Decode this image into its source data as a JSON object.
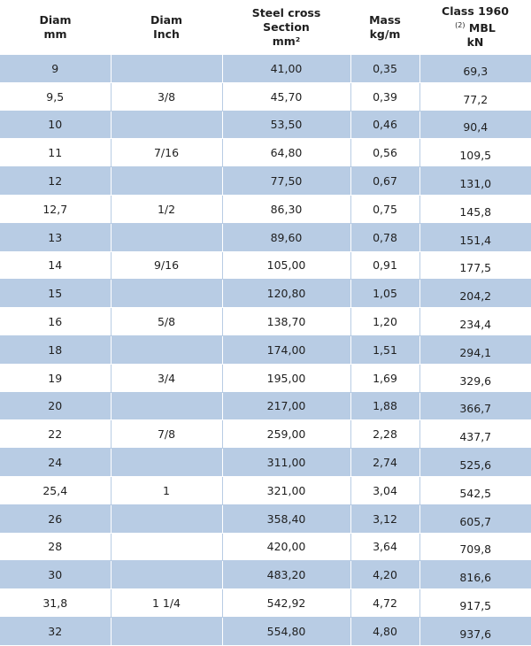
{
  "headers": {
    "diam_mm": [
      "Diam",
      "mm"
    ],
    "diam_inch": [
      "Diam",
      "Inch"
    ],
    "section": [
      "Steel cross",
      "Section",
      "mm²"
    ],
    "mass": [
      "Mass",
      "kg/m"
    ],
    "mbl": [
      "Class 1960",
      "(2)",
      "MBL",
      "kN"
    ]
  },
  "rows": [
    {
      "diam_mm": "9",
      "diam_inch": "",
      "section": "41,00",
      "mass": "0,35",
      "mbl": "69,3"
    },
    {
      "diam_mm": "9,5",
      "diam_inch": "3/8",
      "section": "45,70",
      "mass": "0,39",
      "mbl": "77,2"
    },
    {
      "diam_mm": "10",
      "diam_inch": "",
      "section": "53,50",
      "mass": "0,46",
      "mbl": "90,4"
    },
    {
      "diam_mm": "11",
      "diam_inch": "7/16",
      "section": "64,80",
      "mass": "0,56",
      "mbl": "109,5"
    },
    {
      "diam_mm": "12",
      "diam_inch": "",
      "section": "77,50",
      "mass": "0,67",
      "mbl": "131,0"
    },
    {
      "diam_mm": "12,7",
      "diam_inch": "1/2",
      "section": "86,30",
      "mass": "0,75",
      "mbl": "145,8"
    },
    {
      "diam_mm": "13",
      "diam_inch": "",
      "section": "89,60",
      "mass": "0,78",
      "mbl": "151,4"
    },
    {
      "diam_mm": "14",
      "diam_inch": "9/16",
      "section": "105,00",
      "mass": "0,91",
      "mbl": "177,5"
    },
    {
      "diam_mm": "15",
      "diam_inch": "",
      "section": "120,80",
      "mass": "1,05",
      "mbl": "204,2"
    },
    {
      "diam_mm": "16",
      "diam_inch": "5/8",
      "section": "138,70",
      "mass": "1,20",
      "mbl": "234,4"
    },
    {
      "diam_mm": "18",
      "diam_inch": "",
      "section": "174,00",
      "mass": "1,51",
      "mbl": "294,1"
    },
    {
      "diam_mm": "19",
      "diam_inch": "3/4",
      "section": "195,00",
      "mass": "1,69",
      "mbl": "329,6"
    },
    {
      "diam_mm": "20",
      "diam_inch": "",
      "section": "217,00",
      "mass": "1,88",
      "mbl": "366,7"
    },
    {
      "diam_mm": "22",
      "diam_inch": "7/8",
      "section": "259,00",
      "mass": "2,28",
      "mbl": "437,7"
    },
    {
      "diam_mm": "24",
      "diam_inch": "",
      "section": "311,00",
      "mass": "2,74",
      "mbl": "525,6"
    },
    {
      "diam_mm": "25,4",
      "diam_inch": "1",
      "section": "321,00",
      "mass": "3,04",
      "mbl": "542,5"
    },
    {
      "diam_mm": "26",
      "diam_inch": "",
      "section": "358,40",
      "mass": "3,12",
      "mbl": "605,7"
    },
    {
      "diam_mm": "28",
      "diam_inch": "",
      "section": "420,00",
      "mass": "3,64",
      "mbl": "709,8"
    },
    {
      "diam_mm": "30",
      "diam_inch": "",
      "section": "483,20",
      "mass": "4,20",
      "mbl": "816,6"
    },
    {
      "diam_mm": "31,8",
      "diam_inch": "1 1/4",
      "section": "542,92",
      "mass": "4,72",
      "mbl": "917,5"
    },
    {
      "diam_mm": "32",
      "diam_inch": "",
      "section": "554,80",
      "mass": "4,80",
      "mbl": "937,6"
    }
  ],
  "colors": {
    "stripe": "#b8cce4",
    "text": "#1f1f1f",
    "background": "#ffffff"
  }
}
